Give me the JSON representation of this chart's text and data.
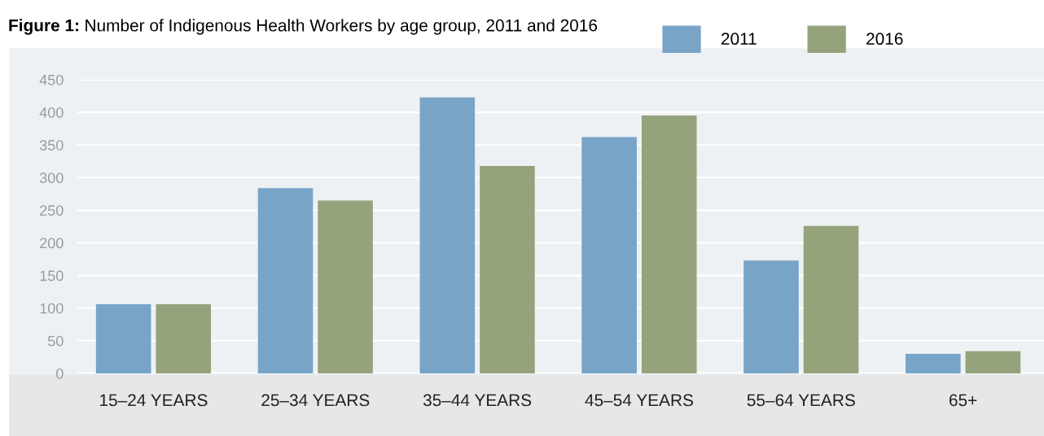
{
  "chart_data": {
    "type": "bar",
    "title": "Figure 1: Number of Indigenous Health Workers by age group, 2011 and 2016",
    "categories": [
      "15–24 YEARS",
      "25–34 YEARS",
      "35–44 YEARS",
      "45–54 YEARS",
      "55–64 YEARS",
      "65+"
    ],
    "series": [
      {
        "name": "2011",
        "color": "#78a4c8",
        "values": [
          106,
          284,
          423,
          362,
          173,
          30
        ]
      },
      {
        "name": "2016",
        "color": "#94a37b",
        "values": [
          106,
          265,
          318,
          395,
          226,
          34
        ]
      }
    ],
    "ylim": [
      0,
      450
    ],
    "yticks": [
      0,
      50,
      100,
      150,
      200,
      250,
      300,
      350,
      400,
      450
    ],
    "grid": "y",
    "legend": "top right"
  }
}
